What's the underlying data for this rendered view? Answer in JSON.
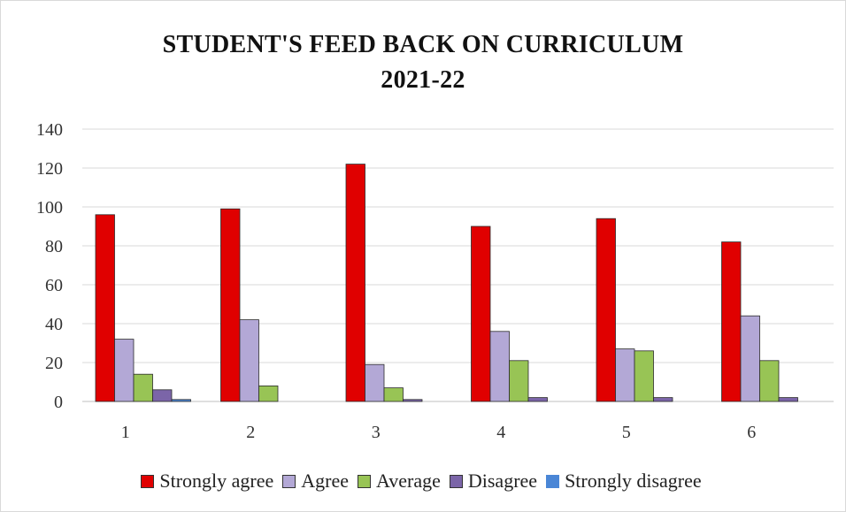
{
  "chart_data": {
    "type": "bar",
    "title_line1": "STUDENT'S FEED BACK ON CURRICULUM",
    "title_line2": "2021-22",
    "xlabel": "",
    "ylabel": "",
    "categories": [
      "1",
      "2",
      "3",
      "4",
      "5",
      "6"
    ],
    "ylim": [
      0,
      140
    ],
    "yticks": [
      "0",
      "20",
      "40",
      "60",
      "80",
      "100",
      "120",
      "140"
    ],
    "grid": true,
    "legend_position": "bottom",
    "series": [
      {
        "name": "Strongly agree",
        "color": "#e00000",
        "values": [
          96,
          99,
          122,
          90,
          94,
          82
        ]
      },
      {
        "name": "Agree",
        "color": "#b3a8d6",
        "values": [
          32,
          42,
          19,
          36,
          27,
          44
        ]
      },
      {
        "name": "Average",
        "color": "#98c455",
        "values": [
          14,
          8,
          7,
          21,
          26,
          21
        ]
      },
      {
        "name": "Disagree",
        "color": "#7b65a8",
        "values": [
          6,
          0,
          1,
          2,
          2,
          2
        ]
      },
      {
        "name": "Strongly disagree",
        "color": "#4a86d6",
        "values": [
          1,
          0,
          0,
          0,
          0,
          0
        ]
      }
    ]
  }
}
